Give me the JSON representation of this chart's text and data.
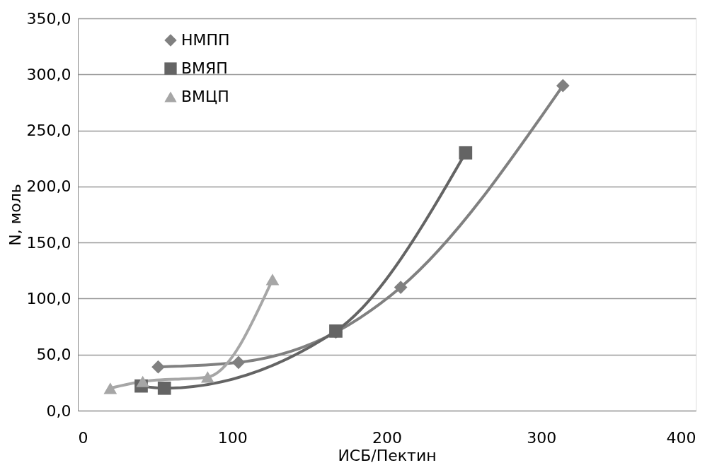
{
  "chart_data": {
    "type": "line",
    "xlabel": "ИСБ/Пектин",
    "ylabel": "N, моль",
    "xlim": [
      0,
      400
    ],
    "xticks": [
      0,
      100,
      200,
      300,
      400
    ],
    "ylim": [
      0,
      350
    ],
    "yticks": [
      {
        "value": 0,
        "label": "0,0"
      },
      {
        "value": 50,
        "label": "50,0"
      },
      {
        "value": 100,
        "label": "100,0"
      },
      {
        "value": 150,
        "label": "150,0"
      },
      {
        "value": 200,
        "label": "200,0"
      },
      {
        "value": 250,
        "label": "250,0"
      },
      {
        "value": 300,
        "label": "300,0"
      },
      {
        "value": 350,
        "label": "350,0"
      }
    ],
    "grid": "y",
    "legend": "top left",
    "series": [
      {
        "name": "НМПП",
        "color": "#808080",
        "marker": "diamond",
        "x": [
          52,
          104,
          167,
          209,
          314
        ],
        "values": [
          39,
          43,
          70,
          110,
          290
        ]
      },
      {
        "name": "ВМЯП",
        "color": "#646464",
        "marker": "square",
        "x": [
          41,
          56,
          167,
          251
        ],
        "values": [
          22,
          20,
          71,
          230
        ]
      },
      {
        "name": "ВМЦП",
        "color": "#a6a6a6",
        "marker": "triangle",
        "x": [
          21,
          42,
          84,
          126
        ],
        "values": [
          20,
          26,
          30,
          117
        ]
      }
    ]
  }
}
